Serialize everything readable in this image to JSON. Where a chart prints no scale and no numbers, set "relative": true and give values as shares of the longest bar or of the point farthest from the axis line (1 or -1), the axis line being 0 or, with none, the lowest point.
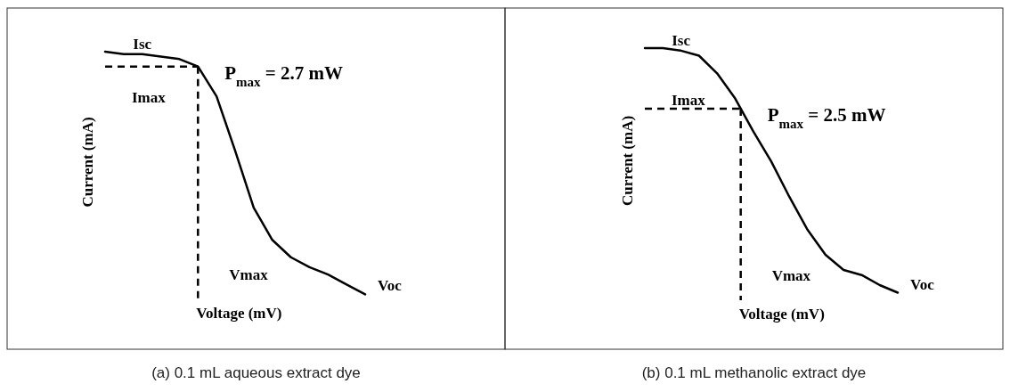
{
  "chart_data": [
    {
      "type": "line",
      "title": "(a)  0.1 mL aqueous extract dye",
      "xlabel": "Voltage (mV)",
      "ylabel": "Current  (mA)",
      "relative": true,
      "tick_labels": false,
      "categories": [
        null,
        null,
        null,
        null,
        null,
        null,
        null,
        null,
        null,
        null,
        null,
        null,
        null,
        null,
        null
      ],
      "series": [
        {
          "color": "#000000",
          "values": [
            1.0,
            0.99,
            0.99,
            0.98,
            0.97,
            0.94,
            0.82,
            0.6,
            0.37,
            0.24,
            0.17,
            0.13,
            0.1,
            0.06,
            0.02
          ]
        }
      ],
      "ref_lines": [
        {
          "axis": "y",
          "value": 0.94,
          "label": "Imax",
          "line_style": "dashed",
          "color": "#000000"
        }
      ],
      "annotations": [
        "Isc",
        "P$_{max}$ = 2.7 mW",
        "Voc",
        "Vmax"
      ]
    },
    {
      "type": "line",
      "title": "(b)  0.1 mL methanolic extract dye",
      "xlabel": "Voltage (mV)",
      "ylabel": "Current (mA)",
      "relative": true,
      "tick_labels": false,
      "categories": [
        null,
        null,
        null,
        null,
        null,
        null,
        null,
        null,
        null,
        null,
        null,
        null,
        null,
        null,
        null
      ],
      "series": [
        {
          "color": "#000000",
          "values": [
            1.0,
            1.0,
            0.99,
            0.97,
            0.9,
            0.8,
            0.67,
            0.55,
            0.41,
            0.28,
            0.18,
            0.12,
            0.1,
            0.06,
            0.03
          ]
        }
      ],
      "ref_lines": [
        {
          "axis": "y",
          "value": 0.76,
          "label": "Imax",
          "line_style": "dashed",
          "color": "#000000"
        }
      ],
      "annotations": [
        "Isc",
        "P$_{max}$ = 2.5 mW",
        "Voc",
        "Vmax"
      ]
    }
  ]
}
